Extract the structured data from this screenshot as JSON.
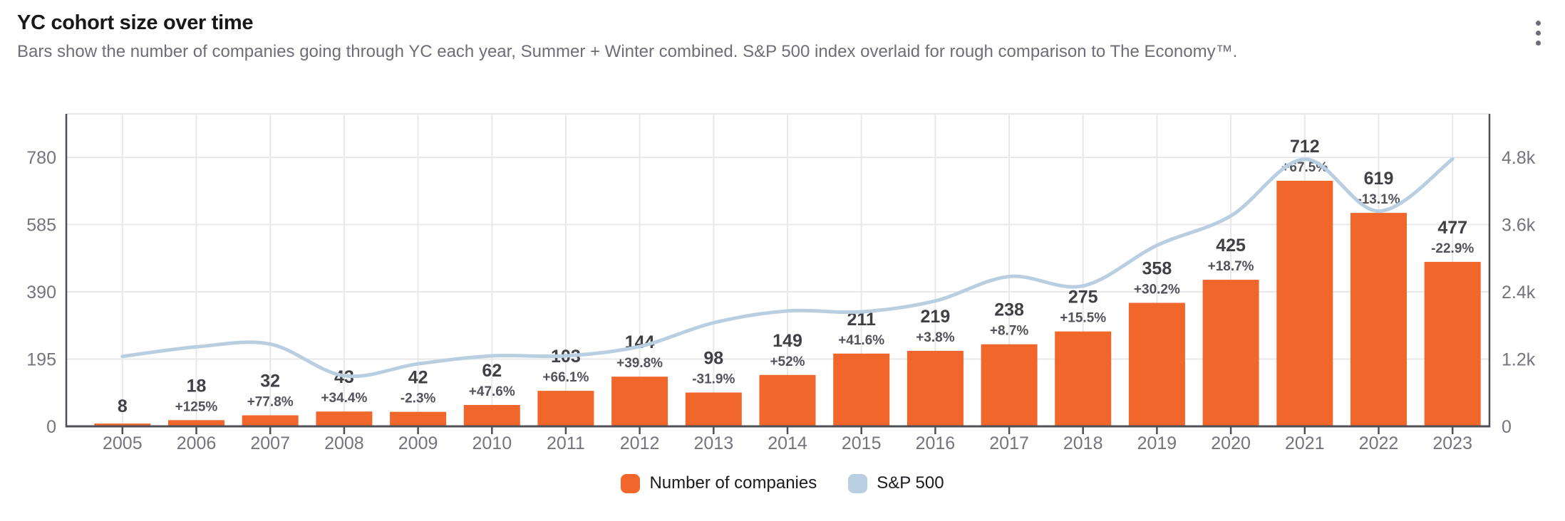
{
  "header": {
    "title": "YC cohort size over time",
    "subtitle": "Bars show the number of companies going through YC each year, Summer + Winter combined. S&P 500 index overlaid for rough comparison to The Economy™.",
    "menu_icon": "kebab-vertical"
  },
  "colors": {
    "bar": "#F0662B",
    "line": "#B9CFE1",
    "grid": "#E8E8EB",
    "axis": "#4F4F57",
    "bar_value_label": "#3F3F46",
    "bar_pct_label": "#52525B",
    "tick_text": "#74747E",
    "title_text": "#17171C",
    "subtitle_text": "#6E6E78"
  },
  "chart_data": {
    "type": "bar",
    "title": "YC cohort size over time",
    "categories": [
      "2005",
      "2006",
      "2007",
      "2008",
      "2009",
      "2010",
      "2011",
      "2012",
      "2013",
      "2014",
      "2015",
      "2016",
      "2017",
      "2018",
      "2019",
      "2020",
      "2021",
      "2022",
      "2023"
    ],
    "series": [
      {
        "name": "Number of companies",
        "type": "bar",
        "axis": "left",
        "color": "#F0662B",
        "values": [
          8,
          18,
          32,
          43,
          42,
          62,
          103,
          144,
          98,
          149,
          211,
          219,
          238,
          275,
          358,
          425,
          712,
          619,
          477
        ],
        "pct_change_labels": [
          null,
          "+125%",
          "+77.8%",
          "+34.4%",
          "-2.3%",
          "+47.6%",
          "+66.1%",
          "+39.8%",
          "-31.9%",
          "+52%",
          "+41.6%",
          "+3.8%",
          "+8.7%",
          "+15.5%",
          "+30.2%",
          "+18.7%",
          "+67.5%",
          "-13.1%",
          "-22.9%"
        ]
      },
      {
        "name": "S&P 500",
        "type": "line",
        "axis": "right",
        "color": "#B9CFE1",
        "values": [
          1248,
          1418,
          1468,
          903,
          1115,
          1258,
          1258,
          1426,
          1848,
          2059,
          2044,
          2239,
          2674,
          2507,
          3231,
          3756,
          4766,
          3840,
          4770
        ]
      }
    ],
    "left_axis": {
      "tick_labels": [
        "0",
        "195",
        "390",
        "585",
        "780"
      ],
      "tick_values": [
        0,
        195,
        390,
        585,
        780
      ],
      "max": 906
    },
    "right_axis": {
      "tick_labels": [
        "0",
        "1.2k",
        "2.4k",
        "3.6k",
        "4.8k"
      ],
      "tick_values": [
        0,
        1200,
        2400,
        3600,
        4800
      ],
      "max": 5577
    },
    "grid": true,
    "legend_position": "bottom"
  },
  "legend": {
    "items": [
      {
        "label": "Number of companies",
        "color": "#F0662B"
      },
      {
        "label": "S&P 500",
        "color": "#B9CFE1"
      }
    ]
  }
}
